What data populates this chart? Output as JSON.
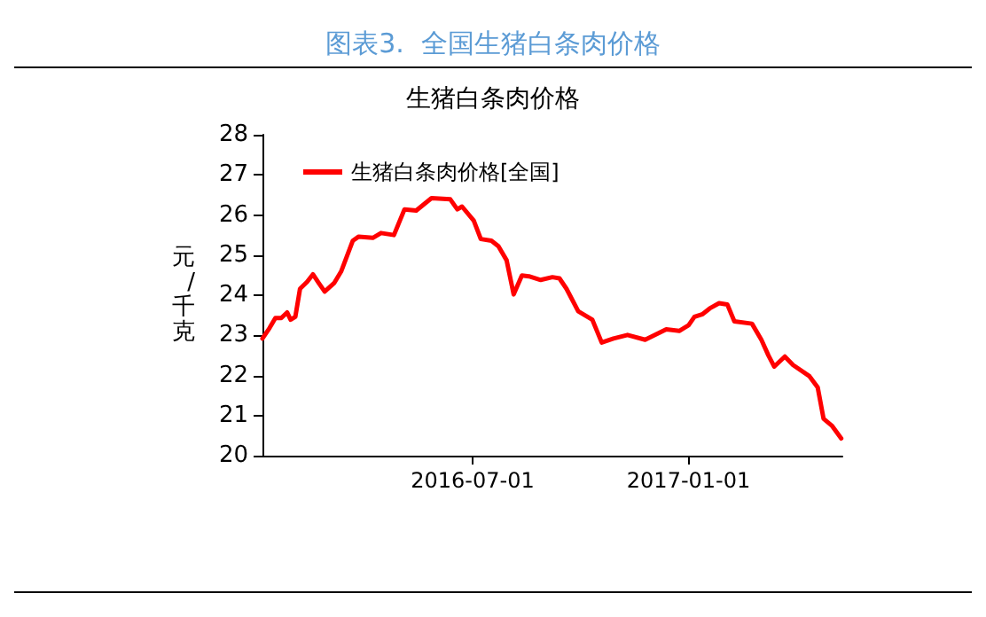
{
  "chart_data": {
    "type": "line",
    "title": "图表3.  全国生猪白条肉价格",
    "subtitle": "生猪白条肉价格",
    "ylabel": "元/千克",
    "x": [
      "2016-01-04",
      "2016-01-10",
      "2016-01-15",
      "2016-01-20",
      "2016-01-25",
      "2016-01-28",
      "2016-02-01",
      "2016-02-05",
      "2016-02-11",
      "2016-02-16",
      "2016-02-21",
      "2016-02-26",
      "2016-03-05",
      "2016-03-11",
      "2016-03-21",
      "2016-03-26",
      "2016-04-07",
      "2016-04-14",
      "2016-04-25",
      "2016-05-04",
      "2016-05-14",
      "2016-05-27",
      "2016-06-12",
      "2016-06-18",
      "2016-06-22",
      "2016-07-02",
      "2016-07-08",
      "2016-07-17",
      "2016-07-23",
      "2016-07-30",
      "2016-08-05",
      "2016-08-12",
      "2016-08-18",
      "2016-08-28",
      "2016-09-07",
      "2016-09-13",
      "2016-09-19",
      "2016-09-29",
      "2016-10-11",
      "2016-10-19",
      "2016-10-29",
      "2016-11-10",
      "2016-11-25",
      "2016-12-13",
      "2016-12-24",
      "2017-01-01",
      "2017-01-06",
      "2017-01-13",
      "2017-01-19",
      "2017-01-27",
      "2017-02-03",
      "2017-02-09",
      "2017-02-24",
      "2017-03-04",
      "2017-03-10",
      "2017-03-15",
      "2017-03-24",
      "2017-03-31",
      "2017-04-14",
      "2017-04-21",
      "2017-04-26",
      "2017-05-03",
      "2017-05-11"
    ],
    "series": [
      {
        "name": "生猪白条肉价格[全国]",
        "color": "#ff0000",
        "values": [
          22.92,
          23.18,
          23.43,
          23.43,
          23.57,
          23.39,
          23.46,
          24.16,
          24.33,
          24.52,
          24.3,
          24.09,
          24.3,
          24.59,
          25.36,
          25.46,
          25.43,
          25.55,
          25.5,
          26.14,
          26.11,
          26.42,
          26.39,
          26.14,
          26.21,
          25.86,
          25.4,
          25.36,
          25.22,
          24.87,
          24.02,
          24.49,
          24.47,
          24.38,
          24.45,
          24.42,
          24.16,
          23.6,
          23.39,
          22.82,
          22.92,
          23.01,
          22.89,
          23.15,
          23.11,
          23.25,
          23.46,
          23.53,
          23.67,
          23.8,
          23.77,
          23.35,
          23.29,
          22.89,
          22.5,
          22.22,
          22.47,
          22.26,
          21.98,
          21.7,
          20.92,
          20.75,
          20.43
        ]
      }
    ],
    "xlim": [
      "2016-01-04",
      "2017-05-12"
    ],
    "xticks": [
      "2016-07-01",
      "2017-01-01"
    ],
    "ylim": [
      20,
      28
    ],
    "yticks": [
      20,
      21,
      22,
      23,
      24,
      25,
      26,
      27,
      28
    ],
    "grid": false,
    "legend": "top left",
    "marker": "none",
    "line_style": "solid"
  }
}
